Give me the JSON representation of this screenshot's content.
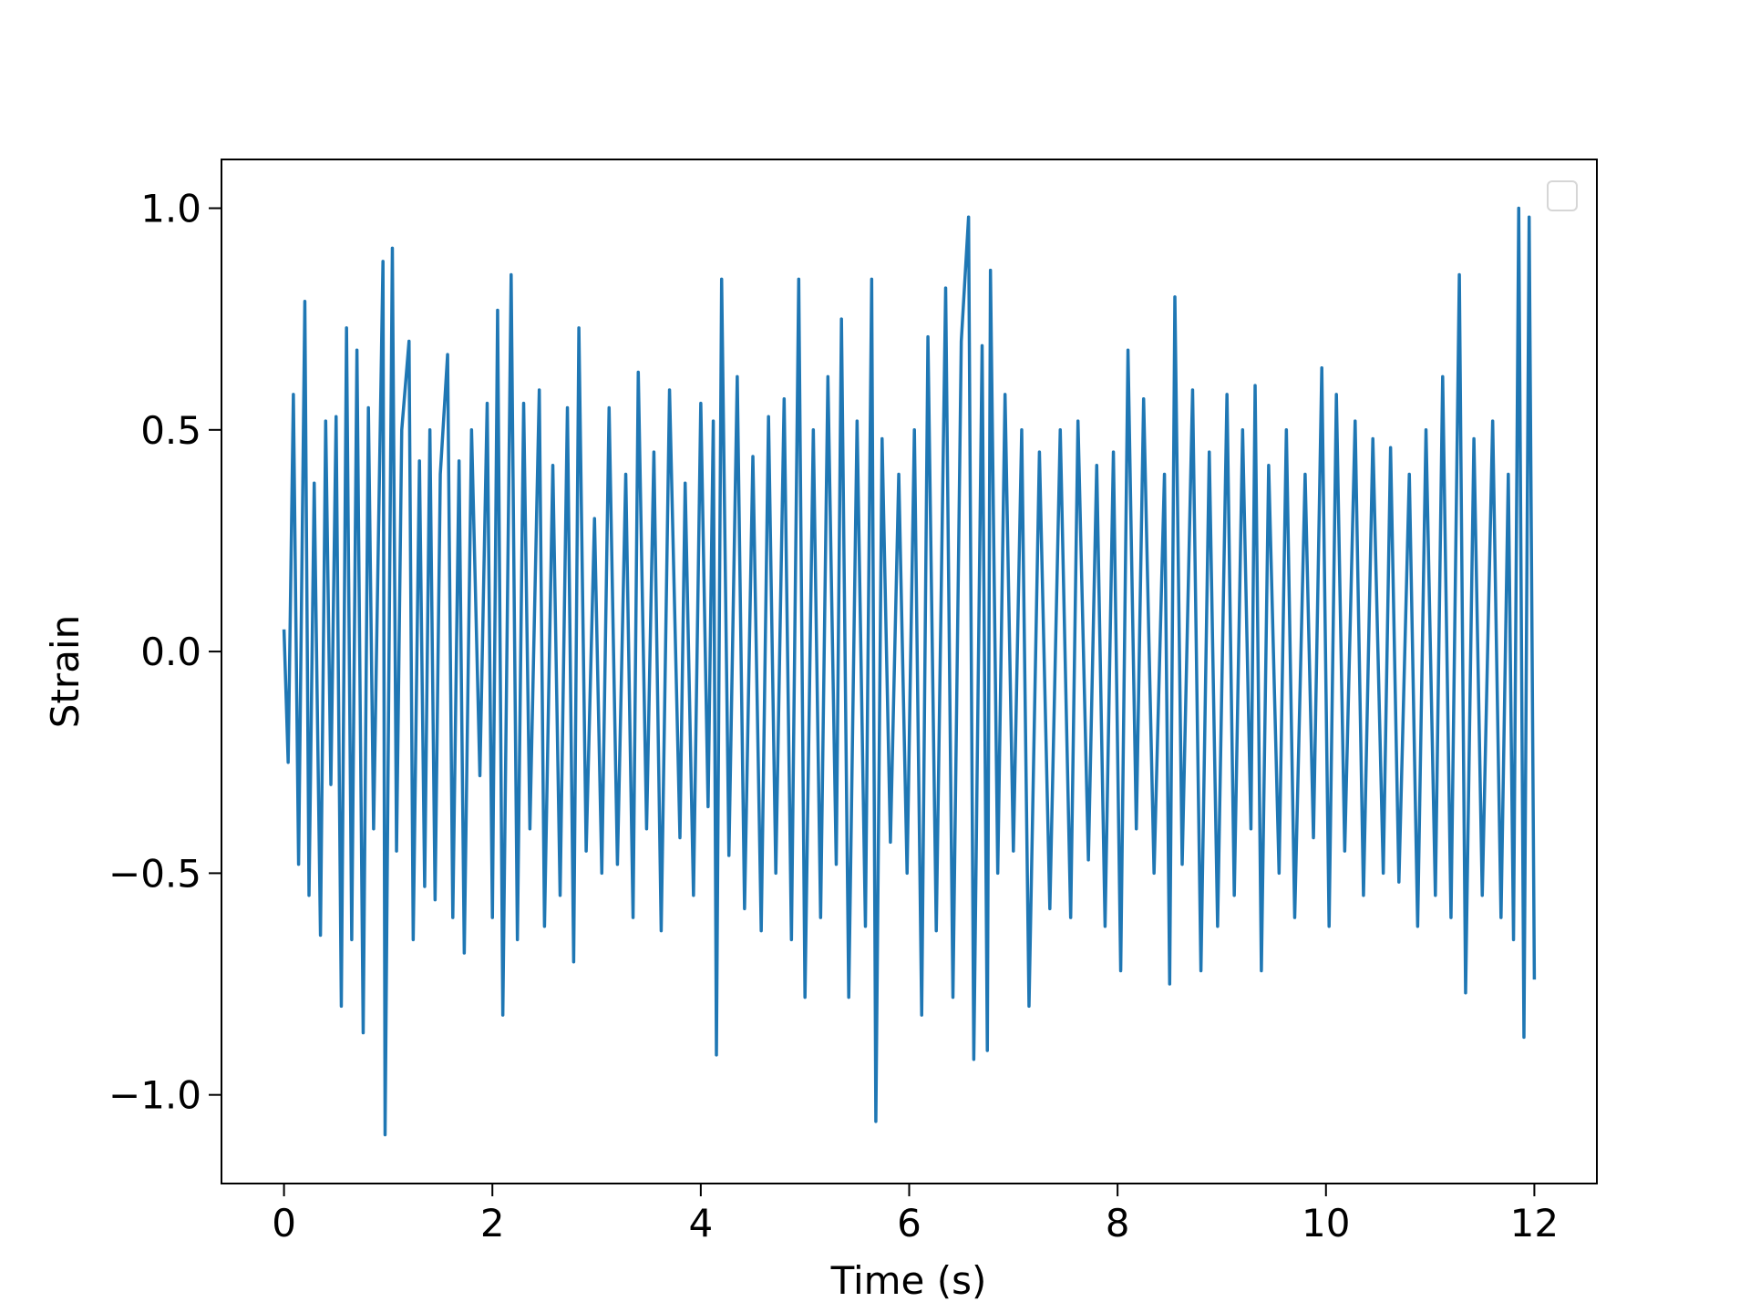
{
  "chart_data": {
    "type": "line",
    "xlabel": "Time (s)",
    "ylabel": "Strain",
    "xlim": [
      -0.6,
      12.6
    ],
    "xticks": [
      0,
      2,
      4,
      6,
      8,
      10,
      12
    ],
    "ylim": [
      -1.2,
      1.11
    ],
    "yticks": [
      {
        "value": -1.0,
        "label": "−1.0"
      },
      {
        "value": -0.5,
        "label": "−0.5"
      },
      {
        "value": 0.0,
        "label": "0.0"
      },
      {
        "value": 0.5,
        "label": "0.5"
      },
      {
        "value": 1.0,
        "label": "1.0"
      }
    ],
    "grid": false,
    "series": [
      {
        "color": "#1f77b4",
        "x": [
          0,
          0.04,
          0.09,
          0.14,
          0.2,
          0.24,
          0.29,
          0.35,
          0.4,
          0.45,
          0.5,
          0.55,
          0.6,
          0.65,
          0.7,
          0.76,
          0.81,
          0.86,
          0.95,
          0.97,
          1.04,
          1.08,
          1.13,
          1.2,
          1.24,
          1.3,
          1.35,
          1.4,
          1.45,
          1.5,
          1.57,
          1.62,
          1.68,
          1.73,
          1.8,
          1.88,
          1.95,
          2.0,
          2.05,
          2.1,
          2.18,
          2.24,
          2.3,
          2.36,
          2.45,
          2.5,
          2.58,
          2.65,
          2.72,
          2.78,
          2.83,
          2.9,
          2.98,
          3.05,
          3.12,
          3.2,
          3.28,
          3.35,
          3.4,
          3.48,
          3.55,
          3.62,
          3.7,
          3.8,
          3.85,
          3.93,
          4.0,
          4.07,
          4.12,
          4.15,
          4.2,
          4.27,
          4.35,
          4.42,
          4.5,
          4.58,
          4.65,
          4.72,
          4.8,
          4.87,
          4.94,
          5.0,
          5.08,
          5.15,
          5.22,
          5.3,
          5.35,
          5.42,
          5.5,
          5.58,
          5.64,
          5.68,
          5.74,
          5.82,
          5.9,
          5.98,
          6.05,
          6.12,
          6.18,
          6.26,
          6.35,
          6.42,
          6.5,
          6.57,
          6.62,
          6.7,
          6.75,
          6.78,
          6.85,
          6.92,
          7.0,
          7.08,
          7.15,
          7.25,
          7.35,
          7.45,
          7.55,
          7.62,
          7.72,
          7.8,
          7.88,
          7.96,
          8.03,
          8.1,
          8.18,
          8.25,
          8.35,
          8.45,
          8.5,
          8.55,
          8.62,
          8.72,
          8.8,
          8.88,
          8.96,
          9.05,
          9.12,
          9.2,
          9.28,
          9.32,
          9.38,
          9.45,
          9.55,
          9.62,
          9.7,
          9.8,
          9.88,
          9.96,
          10.03,
          10.1,
          10.18,
          10.28,
          10.36,
          10.45,
          10.55,
          10.62,
          10.7,
          10.8,
          10.88,
          10.96,
          11.05,
          11.12,
          11.2,
          11.28,
          11.34,
          11.42,
          11.5,
          11.6,
          11.68,
          11.75,
          11.8,
          11.85,
          11.9,
          11.95,
          12.0
        ],
        "values": [
          0.05,
          -0.25,
          0.58,
          -0.48,
          0.79,
          -0.55,
          0.38,
          -0.64,
          0.52,
          -0.3,
          0.53,
          -0.8,
          0.73,
          -0.65,
          0.68,
          -0.86,
          0.55,
          -0.4,
          0.88,
          -1.09,
          0.91,
          -0.45,
          0.5,
          0.7,
          -0.65,
          0.43,
          -0.53,
          0.5,
          -0.56,
          0.4,
          0.67,
          -0.6,
          0.43,
          -0.68,
          0.5,
          -0.28,
          0.56,
          -0.6,
          0.77,
          -0.82,
          0.85,
          -0.65,
          0.56,
          -0.4,
          0.59,
          -0.62,
          0.42,
          -0.55,
          0.55,
          -0.7,
          0.73,
          -0.45,
          0.3,
          -0.5,
          0.55,
          -0.48,
          0.4,
          -0.6,
          0.63,
          -0.4,
          0.45,
          -0.63,
          0.59,
          -0.42,
          0.38,
          -0.55,
          0.56,
          -0.35,
          0.52,
          -0.91,
          0.84,
          -0.46,
          0.62,
          -0.58,
          0.44,
          -0.63,
          0.53,
          -0.5,
          0.57,
          -0.65,
          0.84,
          -0.78,
          0.5,
          -0.6,
          0.62,
          -0.48,
          0.75,
          -0.78,
          0.52,
          -0.62,
          0.84,
          -1.06,
          0.48,
          -0.43,
          0.4,
          -0.5,
          0.5,
          -0.82,
          0.71,
          -0.63,
          0.82,
          -0.78,
          0.7,
          0.98,
          -0.92,
          0.69,
          -0.9,
          0.86,
          -0.5,
          0.58,
          -0.45,
          0.5,
          -0.8,
          0.45,
          -0.58,
          0.5,
          -0.6,
          0.52,
          -0.47,
          0.42,
          -0.62,
          0.45,
          -0.72,
          0.68,
          -0.4,
          0.57,
          -0.5,
          0.4,
          -0.75,
          0.8,
          -0.48,
          0.59,
          -0.72,
          0.45,
          -0.62,
          0.58,
          -0.55,
          0.5,
          -0.4,
          0.6,
          -0.72,
          0.42,
          -0.5,
          0.5,
          -0.6,
          0.4,
          -0.42,
          0.64,
          -0.62,
          0.58,
          -0.45,
          0.52,
          -0.55,
          0.48,
          -0.5,
          0.46,
          -0.52,
          0.4,
          -0.62,
          0.5,
          -0.55,
          0.62,
          -0.6,
          0.85,
          -0.77,
          0.48,
          -0.55,
          0.52,
          -0.6,
          0.4,
          -0.65,
          1.0,
          -0.87,
          0.98,
          -0.74
        ]
      }
    ]
  }
}
